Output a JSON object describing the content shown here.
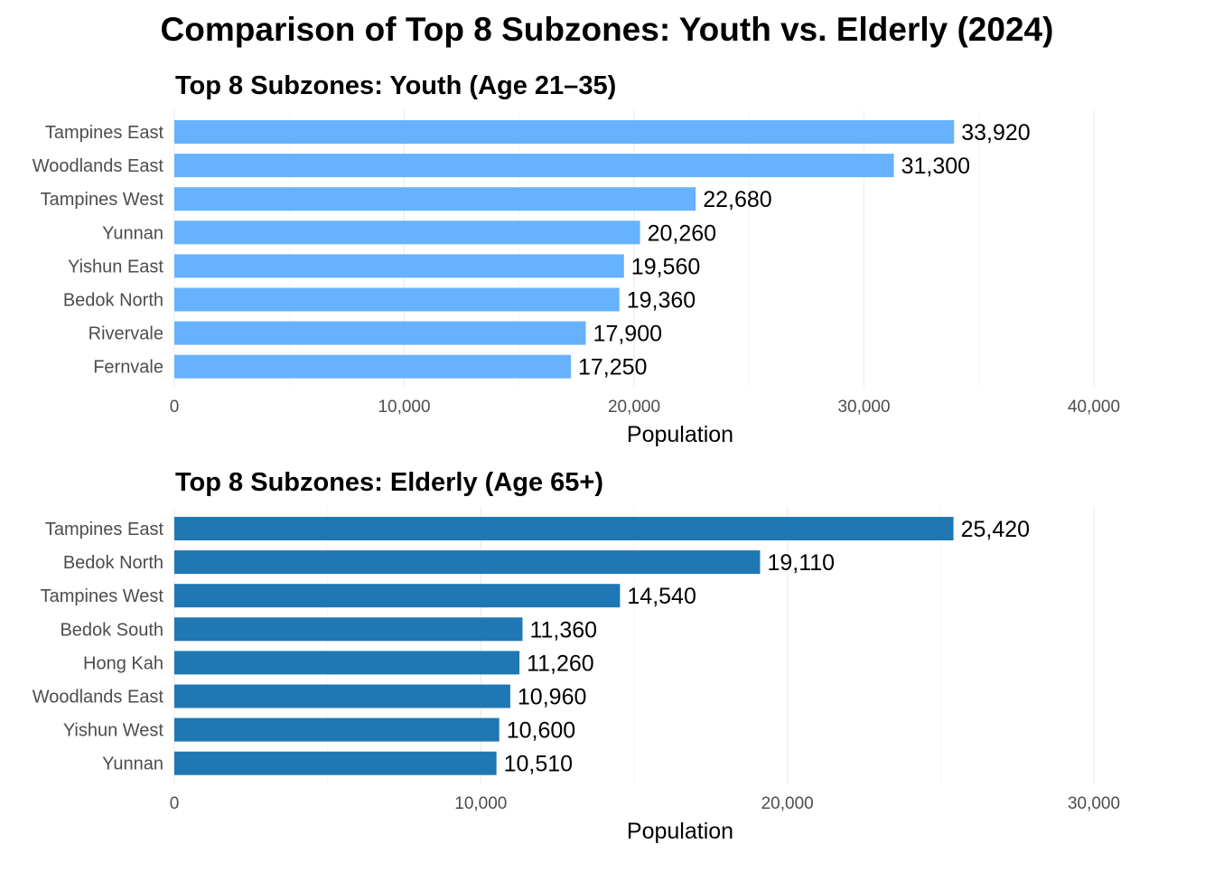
{
  "title": "Comparison of Top 8 Subzones: Youth vs. Elderly (2024)",
  "colors": {
    "youth": "#66b2ff",
    "elderly": "#1f77b4"
  },
  "chart_data": [
    {
      "type": "bar",
      "orientation": "horizontal",
      "title": "Top 8 Subzones: Youth (Age 21–35)",
      "xlabel": "Population",
      "ylabel": "",
      "xlim": [
        0,
        40000
      ],
      "ticks": [
        0,
        10000,
        20000,
        30000,
        40000
      ],
      "tick_labels": [
        "0",
        "10,000",
        "20,000",
        "30,000",
        "40,000"
      ],
      "grid": true,
      "categories": [
        "Tampines East",
        "Woodlands East",
        "Tampines West",
        "Yunnan",
        "Yishun East",
        "Bedok North",
        "Rivervale",
        "Fernvale"
      ],
      "values": [
        33920,
        31300,
        22680,
        20260,
        19560,
        19360,
        17900,
        17250
      ],
      "value_labels": [
        "33,920",
        "31,300",
        "22,680",
        "20,260",
        "19,560",
        "19,360",
        "17,900",
        "17,250"
      ],
      "color": "#66b2ff"
    },
    {
      "type": "bar",
      "orientation": "horizontal",
      "title": "Top 8 Subzones: Elderly (Age 65+)",
      "xlabel": "Population",
      "ylabel": "",
      "xlim": [
        0,
        30000
      ],
      "ticks": [
        0,
        10000,
        20000,
        30000
      ],
      "tick_labels": [
        "0",
        "10,000",
        "20,000",
        "30,000"
      ],
      "grid": true,
      "categories": [
        "Tampines East",
        "Bedok North",
        "Tampines West",
        "Bedok South",
        "Hong Kah",
        "Woodlands East",
        "Yishun West",
        "Yunnan"
      ],
      "values": [
        25420,
        19110,
        14540,
        11360,
        11260,
        10960,
        10600,
        10510
      ],
      "value_labels": [
        "25,420",
        "19,110",
        "14,540",
        "11,360",
        "11,260",
        "10,960",
        "10,600",
        "10,510"
      ],
      "color": "#1f77b4"
    }
  ]
}
